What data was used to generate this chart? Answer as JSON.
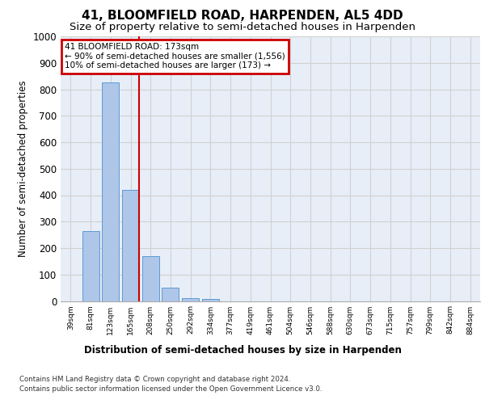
{
  "title1": "41, BLOOMFIELD ROAD, HARPENDEN, AL5 4DD",
  "title2": "Size of property relative to semi-detached houses in Harpenden",
  "xlabel": "Distribution of semi-detached houses by size in Harpenden",
  "ylabel": "Number of semi-detached properties",
  "categories": [
    "39sqm",
    "81sqm",
    "123sqm",
    "165sqm",
    "208sqm",
    "250sqm",
    "292sqm",
    "334sqm",
    "377sqm",
    "419sqm",
    "461sqm",
    "504sqm",
    "546sqm",
    "588sqm",
    "630sqm",
    "673sqm",
    "715sqm",
    "757sqm",
    "799sqm",
    "842sqm",
    "884sqm"
  ],
  "values": [
    0,
    265,
    825,
    420,
    170,
    50,
    12,
    8,
    0,
    0,
    0,
    0,
    0,
    0,
    0,
    0,
    0,
    0,
    0,
    0,
    0
  ],
  "bar_color": "#aec6e8",
  "bar_edge_color": "#5a9bd5",
  "grid_color": "#d0d0d0",
  "vline_color": "#cc0000",
  "vline_x_idx": 3,
  "annotation_text": "41 BLOOMFIELD ROAD: 173sqm\n← 90% of semi-detached houses are smaller (1,556)\n10% of semi-detached houses are larger (173) →",
  "annotation_box_color": "#cc0000",
  "ylim": [
    0,
    1000
  ],
  "yticks": [
    0,
    100,
    200,
    300,
    400,
    500,
    600,
    700,
    800,
    900,
    1000
  ],
  "footer1": "Contains HM Land Registry data © Crown copyright and database right 2024.",
  "footer2": "Contains public sector information licensed under the Open Government Licence v3.0.",
  "bg_color": "#e8eef8",
  "title1_fontsize": 11,
  "title2_fontsize": 9.5
}
